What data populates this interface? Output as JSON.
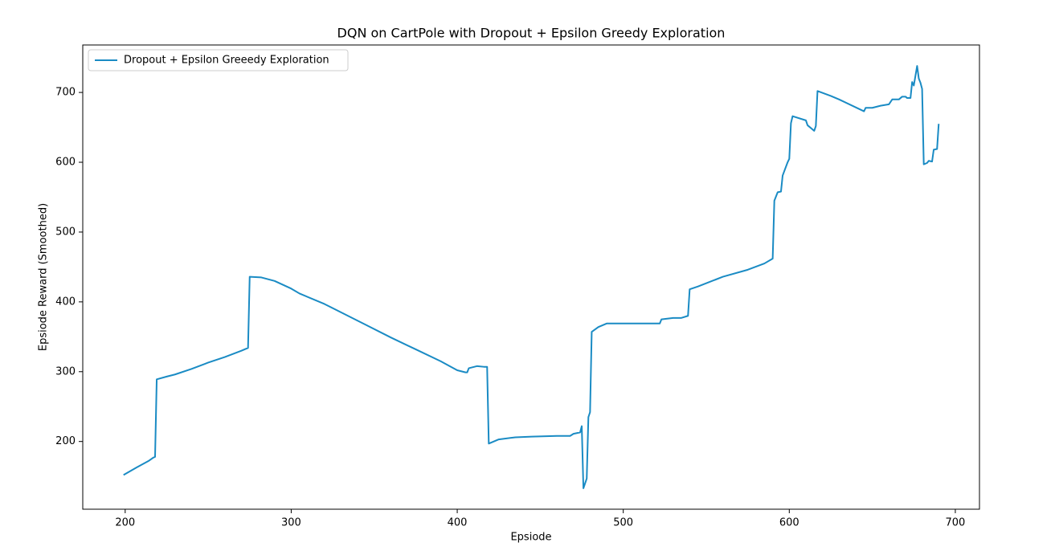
{
  "chart_data": {
    "type": "line",
    "title": "DQN on CartPole with Dropout + Epsilon Greedy Exploration",
    "xlabel": "Epsiode",
    "ylabel": "Epsiode Reward (Smoothed)",
    "xlim": [
      174.45,
      714.55
    ],
    "ylim": [
      103,
      768
    ],
    "xticks": [
      200,
      300,
      400,
      500,
      600,
      700
    ],
    "yticks": [
      200,
      300,
      400,
      500,
      600,
      700
    ],
    "legend": "upper left",
    "x": [
      199,
      207,
      214,
      217,
      218,
      219,
      225,
      230,
      240,
      250,
      260,
      270,
      274,
      275,
      282,
      290,
      300,
      305,
      320,
      330,
      345,
      360,
      375,
      390,
      400,
      405,
      406,
      407,
      412,
      416,
      418,
      419,
      425,
      435,
      445,
      460,
      468,
      470,
      474,
      475,
      476,
      478,
      479,
      480,
      481,
      485,
      490,
      500,
      515,
      522,
      523,
      530,
      535,
      539,
      540,
      545,
      560,
      575,
      585,
      590,
      591,
      593,
      595,
      596,
      599,
      600,
      601,
      602,
      610,
      611,
      615,
      616,
      617,
      625,
      630,
      645,
      646,
      650,
      655,
      660,
      662,
      666,
      668,
      670,
      671,
      673,
      674,
      675,
      677,
      678,
      679,
      680,
      681,
      683,
      684,
      686,
      687,
      689,
      690
    ],
    "series": [
      {
        "name": "Dropout + Epsilon Greeedy Exploration",
        "color": "#1a8bc4",
        "values": [
          152,
          163,
          172,
          177,
          178,
          289,
          293,
          296,
          304,
          313,
          321,
          330,
          334,
          436,
          435,
          430,
          419,
          412,
          397,
          385,
          367,
          349,
          332,
          315,
          302,
          299,
          299,
          305,
          308,
          307,
          307,
          197,
          203,
          206,
          207,
          208,
          208,
          211,
          213,
          222,
          133,
          147,
          235,
          242,
          357,
          364,
          369,
          369,
          369,
          369,
          375,
          377,
          377,
          380,
          418,
          422,
          436,
          446,
          455,
          462,
          545,
          557,
          558,
          581,
          600,
          605,
          656,
          666,
          660,
          653,
          645,
          652,
          702,
          695,
          690,
          673,
          678,
          678,
          681,
          683,
          690,
          690,
          694,
          694,
          692,
          692,
          715,
          710,
          738,
          720,
          714,
          705,
          597,
          599,
          602,
          601,
          618,
          619,
          655
        ]
      }
    ]
  }
}
